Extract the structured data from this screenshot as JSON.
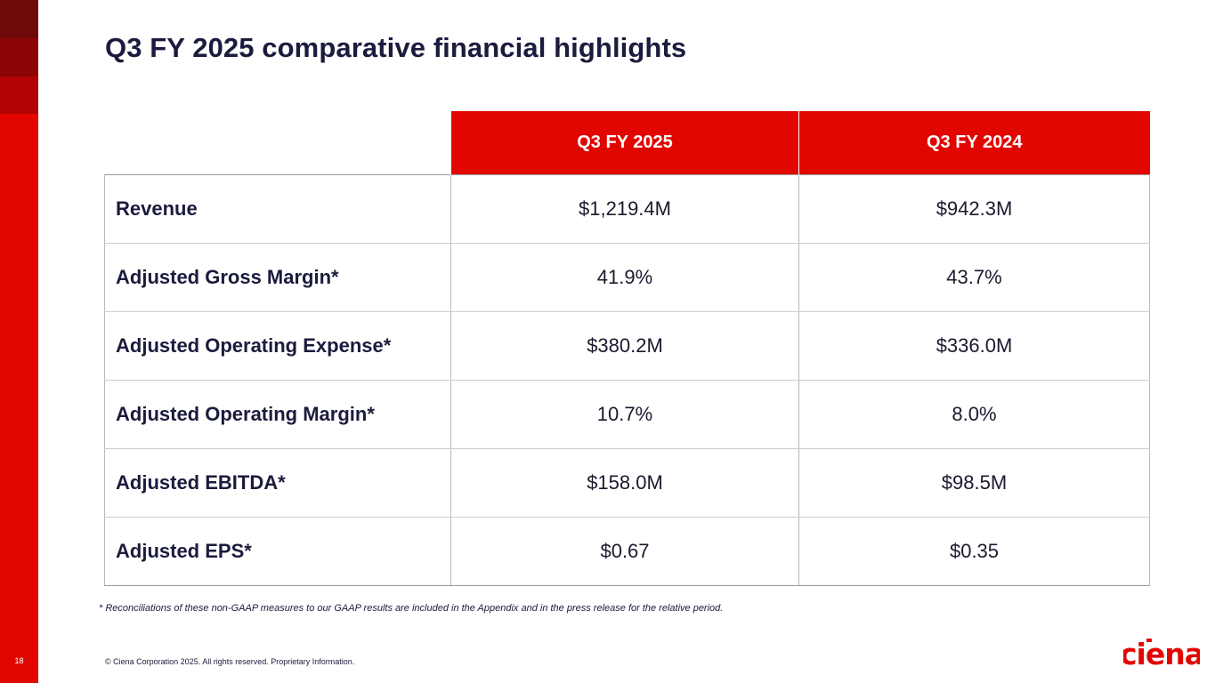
{
  "slide": {
    "page_number": "18",
    "title": "Q3 FY 2025 comparative financial highlights"
  },
  "table": {
    "headers": [
      "Q3 FY 2025",
      "Q3 FY 2024"
    ],
    "rows": [
      {
        "label": "Revenue",
        "q3_fy2025": "$1,219.4M",
        "q3_fy2024": "$942.3M"
      },
      {
        "label": "Adjusted Gross Margin*",
        "q3_fy2025": "41.9%",
        "q3_fy2024": "43.7%"
      },
      {
        "label": "Adjusted Operating Expense*",
        "q3_fy2025": "$380.2M",
        "q3_fy2024": "$336.0M"
      },
      {
        "label": "Adjusted Operating Margin*",
        "q3_fy2025": "10.7%",
        "q3_fy2024": "8.0%"
      },
      {
        "label": "Adjusted EBITDA*",
        "q3_fy2025": "$158.0M",
        "q3_fy2024": "$98.5M"
      },
      {
        "label": "Adjusted EPS*",
        "q3_fy2025": "$0.67",
        "q3_fy2024": "$0.35"
      }
    ]
  },
  "footnote": "* Reconciliations of these non-GAAP measures to our GAAP results are included in the Appendix and in the press release for the relative period.",
  "copyright": "© Ciena Corporation 2025. All rights reserved. Proprietary Information.",
  "logo": {
    "text": "ciena"
  },
  "colors": {
    "brand_red": "#e10600",
    "title_navy": "#1b1b3d"
  }
}
